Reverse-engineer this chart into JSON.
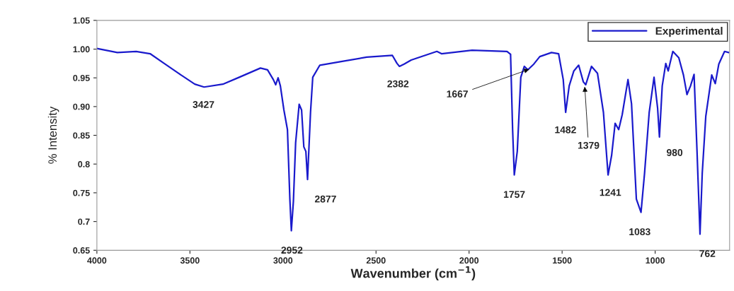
{
  "chart_data": {
    "type": "line",
    "xlabel": "Wavenumber (cm$^{−1}$)",
    "ylabel": "% Intensity",
    "xlim": [
      4000,
      600
    ],
    "ylim": [
      0.65,
      1.05
    ],
    "xticks": [
      4000,
      3500,
      3000,
      2500,
      2000,
      1500,
      1000
    ],
    "yticks": [
      0.65,
      0.7,
      0.75,
      0.8,
      0.85,
      {
        "value": 0.9,
        "label": "0.90"
      },
      0.95,
      {
        "value": 1.0,
        "label": "1.00"
      },
      1.05
    ],
    "grid": false,
    "legend": "top right",
    "line_style": "solid",
    "marker": "none",
    "series": [
      {
        "name": "Experimental",
        "color": "#1a1acc",
        "x": [
          4000,
          3890,
          3789,
          3714,
          3638,
          3562,
          3474,
          3424,
          3323,
          3235,
          3121,
          3083,
          3052,
          3039,
          3026,
          3014,
          2995,
          2976,
          2963,
          2955,
          2944,
          2932,
          2913,
          2900,
          2888,
          2877,
          2868,
          2852,
          2840,
          2802,
          2676,
          2550,
          2412,
          2387,
          2374,
          2349,
          2311,
          2173,
          2148,
          1984,
          1796,
          1777,
          1766,
          1757,
          1741,
          1722,
          1703,
          1684,
          1652,
          1620,
          1557,
          1519,
          1494,
          1481,
          1462,
          1437,
          1411,
          1386,
          1373,
          1342,
          1310,
          1278,
          1253,
          1234,
          1215,
          1196,
          1177,
          1146,
          1127,
          1101,
          1076,
          1057,
          1032,
          1006,
          987,
          977,
          962,
          943,
          930,
          905,
          873,
          848,
          829,
          810,
          791,
          775,
          759,
          747,
          728,
          696,
          677,
          658,
          627,
          605
        ],
        "values": [
          1.001,
          0.994,
          0.996,
          0.992,
          0.975,
          0.958,
          0.939,
          0.934,
          0.939,
          0.951,
          0.967,
          0.964,
          0.947,
          0.938,
          0.95,
          0.936,
          0.894,
          0.86,
          0.739,
          0.684,
          0.735,
          0.837,
          0.904,
          0.894,
          0.83,
          0.822,
          0.773,
          0.89,
          0.951,
          0.972,
          0.979,
          0.986,
          0.989,
          0.975,
          0.97,
          0.974,
          0.981,
          0.996,
          0.992,
          0.998,
          0.996,
          0.991,
          0.86,
          0.781,
          0.822,
          0.951,
          0.97,
          0.964,
          0.974,
          0.987,
          0.994,
          0.992,
          0.947,
          0.89,
          0.936,
          0.962,
          0.972,
          0.943,
          0.938,
          0.97,
          0.958,
          0.89,
          0.781,
          0.815,
          0.871,
          0.86,
          0.886,
          0.947,
          0.905,
          0.739,
          0.716,
          0.784,
          0.89,
          0.951,
          0.898,
          0.847,
          0.936,
          0.975,
          0.962,
          0.996,
          0.985,
          0.955,
          0.921,
          0.936,
          0.956,
          0.822,
          0.678,
          0.784,
          0.883,
          0.955,
          0.94,
          0.974,
          0.996,
          0.994
        ]
      }
    ],
    "annotations": [
      {
        "text": "3427",
        "x": 3427,
        "y": 0.934
      },
      {
        "text": "2952",
        "x": 2952,
        "y": 0.684
      },
      {
        "text": "2877",
        "x": 2877,
        "y": 0.773
      },
      {
        "text": "2382",
        "x": 2382,
        "y": 0.97
      },
      {
        "text": "1667",
        "x": 1667,
        "y": 0.966
      },
      {
        "text": "1757",
        "x": 1757,
        "y": 0.781
      },
      {
        "text": "1482",
        "x": 1482,
        "y": 0.89
      },
      {
        "text": "1379",
        "x": 1379,
        "y": 0.938
      },
      {
        "text": "1241",
        "x": 1241,
        "y": 0.781
      },
      {
        "text": "1083",
        "x": 1083,
        "y": 0.716
      },
      {
        "text": "980",
        "x": 980,
        "y": 0.847
      },
      {
        "text": "762",
        "x": 762,
        "y": 0.678
      }
    ]
  }
}
